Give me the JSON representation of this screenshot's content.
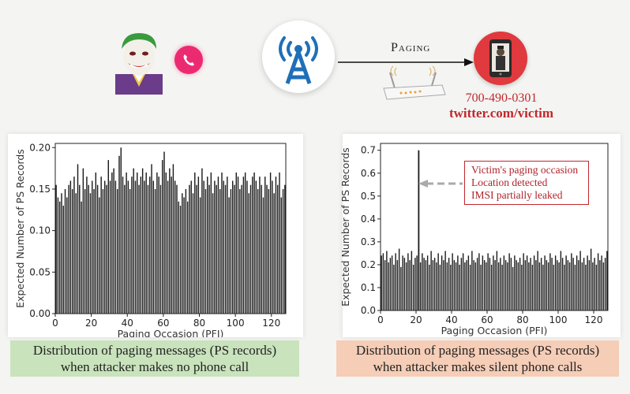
{
  "diagram": {
    "paging_label": "Paging",
    "victim_phone": "700-490-0301",
    "victim_twitter": "twitter.com/victim",
    "icons": [
      "joker-avatar",
      "phone-call-icon",
      "cell-tower-icon",
      "router-icon",
      "victim-phone-icon"
    ],
    "colors": {
      "accent_red": "#c0282d",
      "tower_blue": "#1f6fb8",
      "call_pink": "#ec2a72"
    }
  },
  "annotation": {
    "lines": [
      "Victim's paging occasion",
      "Location detected",
      "IMSI partially leaked"
    ]
  },
  "captions": {
    "left": [
      "Distribution of paging messages (PS records)",
      "when attacker makes no phone call"
    ],
    "right": [
      "Distribution of paging messages (PS records)",
      "when attacker makes silent phone calls"
    ]
  },
  "chart_data": [
    {
      "type": "bar",
      "xlabel": "Paging Occasion (PFI)",
      "ylabel": "Expected Number of PS Records",
      "xlim": [
        0,
        128
      ],
      "ylim": [
        0,
        0.205
      ],
      "xticks": [
        "0",
        "20",
        "40",
        "60",
        "80",
        "100",
        "120"
      ],
      "yticks": [
        "0.00",
        "0.05",
        "0.10",
        "0.15",
        "0.20"
      ],
      "grid": false,
      "values": [
        0.155,
        0.14,
        0.135,
        0.145,
        0.13,
        0.15,
        0.14,
        0.155,
        0.16,
        0.15,
        0.165,
        0.145,
        0.18,
        0.155,
        0.135,
        0.175,
        0.15,
        0.165,
        0.155,
        0.145,
        0.16,
        0.15,
        0.17,
        0.155,
        0.14,
        0.165,
        0.15,
        0.16,
        0.155,
        0.185,
        0.16,
        0.17,
        0.175,
        0.16,
        0.15,
        0.19,
        0.2,
        0.165,
        0.155,
        0.17,
        0.16,
        0.15,
        0.165,
        0.175,
        0.16,
        0.17,
        0.155,
        0.165,
        0.175,
        0.16,
        0.17,
        0.155,
        0.165,
        0.18,
        0.16,
        0.15,
        0.17,
        0.165,
        0.155,
        0.185,
        0.195,
        0.17,
        0.16,
        0.175,
        0.165,
        0.18,
        0.16,
        0.155,
        0.135,
        0.13,
        0.145,
        0.14,
        0.15,
        0.135,
        0.155,
        0.16,
        0.145,
        0.17,
        0.155,
        0.165,
        0.14,
        0.175,
        0.16,
        0.15,
        0.165,
        0.155,
        0.17,
        0.145,
        0.16,
        0.155,
        0.165,
        0.15,
        0.17,
        0.16,
        0.155,
        0.165,
        0.14,
        0.15,
        0.16,
        0.155,
        0.17,
        0.165,
        0.15,
        0.155,
        0.165,
        0.17,
        0.16,
        0.145,
        0.155,
        0.165,
        0.17,
        0.16,
        0.15,
        0.165,
        0.155,
        0.14,
        0.165,
        0.155,
        0.15,
        0.17,
        0.16,
        0.145,
        0.165,
        0.155,
        0.17,
        0.14,
        0.15,
        0.155
      ],
      "markers": []
    },
    {
      "type": "bar",
      "xlabel": "Paging Occasion (PFI)",
      "ylabel": "Expected Number of PS Records",
      "xlim": [
        0,
        128
      ],
      "ylim": [
        0,
        0.73
      ],
      "xticks": [
        "0",
        "20",
        "40",
        "60",
        "80",
        "100",
        "120"
      ],
      "yticks": [
        "0.0",
        "0.1",
        "0.2",
        "0.3",
        "0.4",
        "0.5",
        "0.6",
        "0.7"
      ],
      "grid": false,
      "values": [
        0.24,
        0.25,
        0.22,
        0.26,
        0.21,
        0.23,
        0.24,
        0.2,
        0.25,
        0.22,
        0.27,
        0.19,
        0.24,
        0.23,
        0.21,
        0.25,
        0.22,
        0.26,
        0.2,
        0.23,
        0.24,
        0.7,
        0.21,
        0.25,
        0.23,
        0.22,
        0.24,
        0.2,
        0.26,
        0.22,
        0.23,
        0.21,
        0.25,
        0.2,
        0.24,
        0.22,
        0.26,
        0.21,
        0.23,
        0.2,
        0.25,
        0.22,
        0.21,
        0.24,
        0.2,
        0.23,
        0.25,
        0.21,
        0.22,
        0.24,
        0.2,
        0.26,
        0.22,
        0.21,
        0.23,
        0.25,
        0.2,
        0.24,
        0.22,
        0.21,
        0.25,
        0.23,
        0.2,
        0.24,
        0.22,
        0.26,
        0.21,
        0.23,
        0.2,
        0.24,
        0.22,
        0.21,
        0.25,
        0.23,
        0.19,
        0.24,
        0.22,
        0.21,
        0.23,
        0.2,
        0.25,
        0.22,
        0.24,
        0.21,
        0.23,
        0.2,
        0.24,
        0.22,
        0.26,
        0.21,
        0.23,
        0.2,
        0.24,
        0.22,
        0.21,
        0.25,
        0.23,
        0.2,
        0.24,
        0.22,
        0.21,
        0.26,
        0.23,
        0.2,
        0.24,
        0.22,
        0.21,
        0.25,
        0.23,
        0.2,
        0.24,
        0.22,
        0.26,
        0.21,
        0.23,
        0.2,
        0.24,
        0.22,
        0.27,
        0.21,
        0.23,
        0.2,
        0.25,
        0.22,
        0.24,
        0.21,
        0.23,
        0.26
      ],
      "markers": [
        21
      ]
    }
  ]
}
